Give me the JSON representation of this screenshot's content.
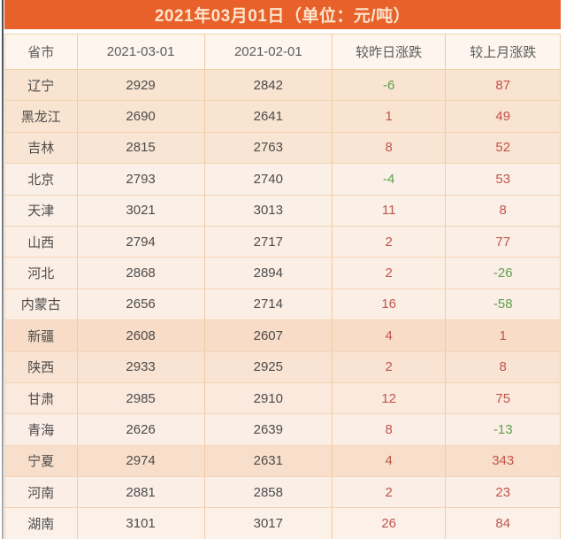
{
  "colors": {
    "banner_bg": "#e8612b",
    "banner_text": "#fbe5cd",
    "positive": "#c0544c",
    "negative": "#5f9e50"
  },
  "chart_data": {
    "type": "table",
    "title": "2021年03月01日（单位：元/吨）",
    "columns": [
      "省市",
      "2021-03-01",
      "2021-02-01",
      "较昨日涨跌",
      "较上月涨跌"
    ],
    "rows": [
      [
        "辽宁",
        2929,
        2842,
        -6,
        87
      ],
      [
        "黑龙江",
        2690,
        2641,
        1,
        49
      ],
      [
        "吉林",
        2815,
        2763,
        8,
        52
      ],
      [
        "北京",
        2793,
        2740,
        -4,
        53
      ],
      [
        "天津",
        3021,
        3013,
        11,
        8
      ],
      [
        "山西",
        2794,
        2717,
        2,
        77
      ],
      [
        "河北",
        2868,
        2894,
        2,
        -26
      ],
      [
        "内蒙古",
        2656,
        2714,
        16,
        -58
      ],
      [
        "新疆",
        2608,
        2607,
        4,
        1
      ],
      [
        "陕西",
        2933,
        2925,
        2,
        8
      ],
      [
        "甘肃",
        2985,
        2910,
        12,
        75
      ],
      [
        "青海",
        2626,
        2639,
        8,
        -13
      ],
      [
        "宁夏",
        2974,
        2631,
        4,
        343
      ],
      [
        "河南",
        2881,
        2858,
        2,
        23
      ],
      [
        "湖南",
        3101,
        3017,
        26,
        84
      ]
    ],
    "legend": "red = increase, green = decrease",
    "layout": "title banner on top, 5 columns, 15 province rows"
  }
}
